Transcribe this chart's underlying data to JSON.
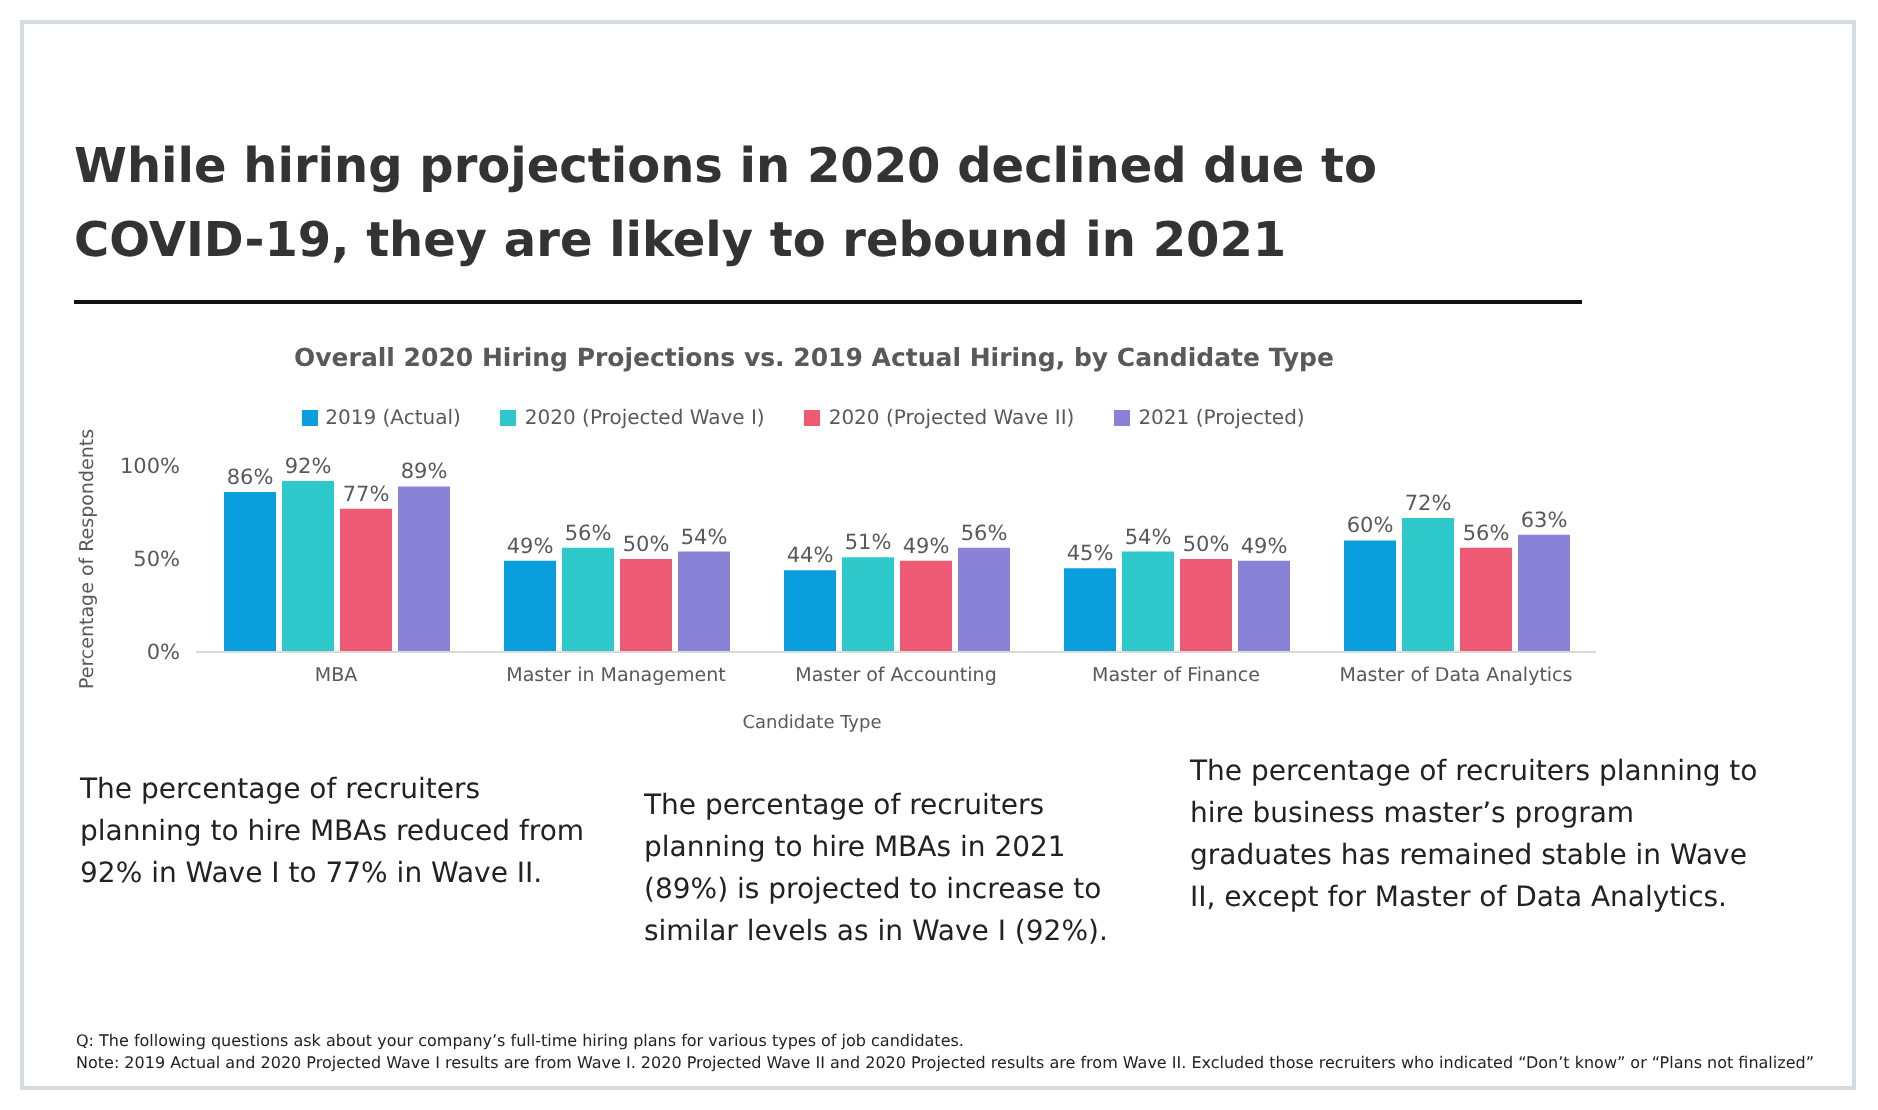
{
  "chart_data": {
    "type": "bar",
    "title": "While hiring projections in 2020 declined due to COVID-19, they are likely to rebound in 2021",
    "subtitle": "Overall 2020 Hiring Projections vs. 2019 Actual Hiring, by Candidate Type",
    "xlabel": "Candidate Type",
    "ylabel": "Percentage of Respondents",
    "categories": [
      "MBA",
      "Master in Management",
      "Master of Accounting",
      "Master of Finance",
      "Master of Data Analytics"
    ],
    "series": [
      {
        "name": "2019 (Actual)",
        "color": "#0a9fdc",
        "values": [
          86,
          49,
          44,
          45,
          60
        ],
        "value_labels": [
          "86%",
          "49%",
          "44%",
          "45%",
          "60%"
        ]
      },
      {
        "name": "2020 (Projected Wave I)",
        "color": "#2fc8cb",
        "values": [
          92,
          56,
          51,
          54,
          72
        ],
        "value_labels": [
          "92%",
          "56%",
          "51%",
          "54%",
          "72%"
        ]
      },
      {
        "name": "2020 (Projected Wave II)",
        "color": "#ee5a73",
        "values": [
          77,
          50,
          49,
          50,
          56
        ],
        "value_labels": [
          "77%",
          "50%",
          "49%",
          "50%",
          "56%"
        ]
      },
      {
        "name": "2021 (Projected)",
        "color": "#8a82d6",
        "values": [
          89,
          54,
          56,
          49,
          63
        ],
        "value_labels": [
          "89%",
          "54%",
          "56%",
          "49%",
          "63%"
        ]
      }
    ],
    "ylim": [
      0,
      100
    ],
    "yticks": [
      {
        "value": 0,
        "label": "0%"
      },
      {
        "value": 50,
        "label": "50%"
      },
      {
        "value": 100,
        "label": "100%"
      }
    ],
    "legend": "top",
    "annotations": [
      "The percentage of recruiters planning to hire MBAs reduced from 92% in Wave I to 77% in Wave II.",
      "The percentage of recruiters planning to hire MBAs in 2021 (89%) is projected to increase to similar levels as in Wave I (92%).",
      "The percentage of recruiters planning to hire business master’s program graduates has remained stable in Wave II, except for Master of Data Analytics.",
      "Q: The following questions ask about your company’s full-time hiring plans for various types of job candidates.",
      "Note: 2019 Actual and 2020 Projected Wave I results are from Wave I. 2020 Projected Wave II and 2020 Projected results are from Wave II. Excluded those recruiters who indicated “Don’t know” or “Plans not finalized”"
    ]
  }
}
